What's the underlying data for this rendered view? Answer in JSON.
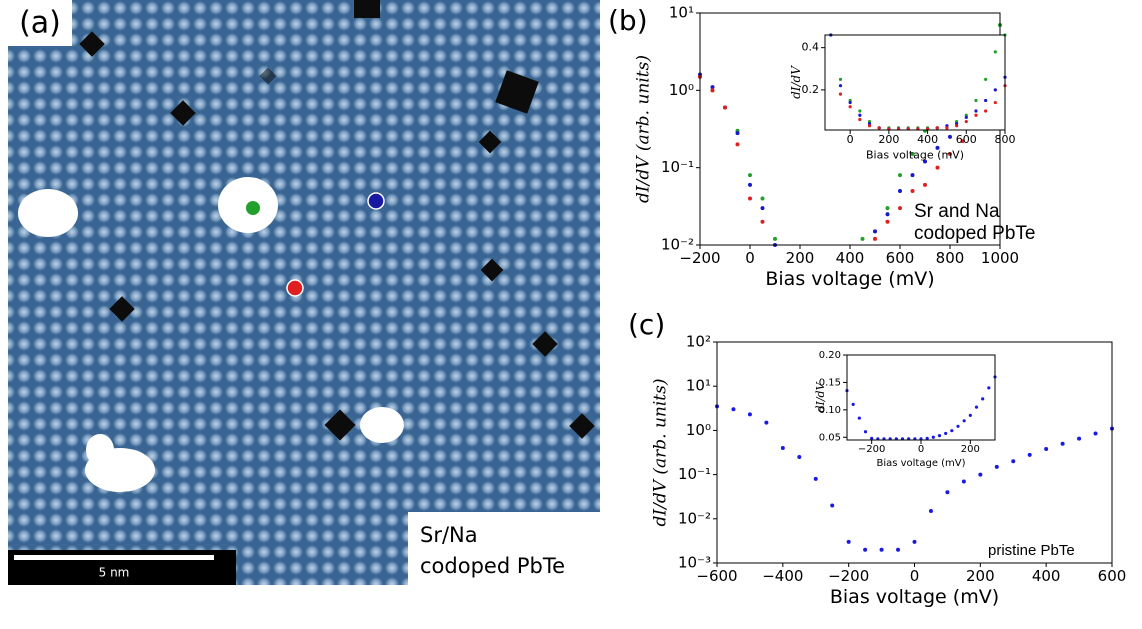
{
  "image_panel": {
    "label": "(a)",
    "scale_bar": "5 nm",
    "caption": [
      "Sr/Na",
      "codoped PbTe"
    ]
  },
  "chart_data": [
    {
      "type": "scatter",
      "panel_label": "(b)",
      "xlabel": "Bias voltage (mV)",
      "ylabel": "dI/dV (arb. units)",
      "annotation": [
        "Sr and Na",
        "codoped PbTe"
      ],
      "log_y": true,
      "xlim": [
        -200,
        1000
      ],
      "ylim": [
        0.01,
        10
      ],
      "xticks": [
        {
          "value": -200,
          "label": "−200"
        },
        0,
        200,
        400,
        600,
        800,
        1000
      ],
      "yticks": [
        {
          "value": 0.01,
          "label": "10⁻²"
        },
        {
          "value": 0.1,
          "label": "10⁻¹"
        },
        {
          "value": 1,
          "label": "10⁰"
        },
        {
          "value": 10,
          "label": "10¹"
        }
      ],
      "x": [
        -200,
        -150,
        -100,
        -50,
        0,
        50,
        100,
        150,
        200,
        250,
        300,
        350,
        400,
        450,
        500,
        550,
        600,
        650,
        700,
        750,
        800,
        850,
        900,
        950,
        1000
      ],
      "series": [
        {
          "color": "#22a02a",
          "values": [
            1.5,
            1.0,
            0.6,
            0.3,
            0.08,
            0.04,
            0.012,
            null,
            null,
            null,
            null,
            null,
            null,
            0.012,
            0.015,
            0.03,
            0.08,
            0.15,
            0.3,
            0.6,
            1.0,
            1.6,
            2.5,
            4,
            7
          ]
        },
        {
          "color": "#1818d0",
          "values": [
            1.6,
            1.1,
            0.6,
            0.28,
            0.06,
            0.03,
            0.01,
            null,
            null,
            null,
            null,
            null,
            null,
            null,
            0.015,
            0.025,
            0.05,
            0.08,
            0.12,
            0.18,
            0.25,
            0.4,
            0.6,
            1.0,
            1.6
          ]
        },
        {
          "color": "#e02020",
          "values": [
            1.5,
            1.0,
            0.6,
            0.2,
            0.04,
            0.02,
            null,
            null,
            null,
            null,
            null,
            null,
            null,
            null,
            0.012,
            0.02,
            0.03,
            0.05,
            0.06,
            0.1,
            0.15,
            0.22,
            0.4,
            0.8,
            1.3
          ]
        }
      ]
    },
    {
      "type": "scatter",
      "xlabel": "Bias voltage (mV)",
      "ylabel": "dI/dV",
      "log_y": false,
      "xlim": [
        -130,
        800
      ],
      "ylim": [
        0.01,
        0.46
      ],
      "xticks": [
        0,
        200,
        400,
        600,
        800
      ],
      "yticks": [
        0.2,
        0.4
      ],
      "x": [
        -100,
        -50,
        0,
        50,
        100,
        150,
        200,
        250,
        300,
        350,
        400,
        450,
        500,
        550,
        600,
        650,
        700,
        750,
        800
      ],
      "series": [
        {
          "color": "#22a02a",
          "values": [
            0.46,
            0.25,
            0.15,
            0.1,
            0.05,
            0.02,
            0.02,
            0.02,
            0.02,
            0.02,
            0.02,
            0.02,
            0.02,
            0.05,
            0.08,
            0.15,
            0.25,
            0.38,
            0.46
          ]
        },
        {
          "color": "#1818d0",
          "values": [
            0.46,
            0.22,
            0.14,
            0.08,
            0.04,
            0.02,
            0.015,
            0.015,
            0.015,
            0.015,
            0.015,
            0.02,
            0.03,
            0.04,
            0.07,
            0.1,
            0.15,
            0.2,
            0.26
          ]
        },
        {
          "color": "#e02020",
          "values": [
            null,
            0.18,
            0.12,
            0.06,
            0.03,
            0.02,
            0.015,
            0.015,
            0.015,
            0.015,
            0.015,
            0.02,
            0.02,
            0.03,
            0.05,
            0.08,
            0.1,
            0.14,
            0.22
          ]
        }
      ]
    },
    {
      "type": "scatter",
      "panel_label": "(c)",
      "xlabel": "Bias voltage (mV)",
      "ylabel": "dI/dV (arb. units)",
      "annotation": [
        "pristine PbTe"
      ],
      "log_y": true,
      "xlim": [
        -600,
        600
      ],
      "ylim": [
        0.001,
        100
      ],
      "xticks": [
        {
          "value": -600,
          "label": "−600"
        },
        {
          "value": -400,
          "label": "−400"
        },
        {
          "value": -200,
          "label": "−200"
        },
        0,
        200,
        400,
        600
      ],
      "yticks": [
        {
          "value": 0.001,
          "label": "10⁻³"
        },
        {
          "value": 0.01,
          "label": "10⁻²"
        },
        {
          "value": 0.1,
          "label": "10⁻¹"
        },
        {
          "value": 1,
          "label": "10⁰"
        },
        {
          "value": 10,
          "label": "10¹"
        },
        {
          "value": 100,
          "label": "10²"
        }
      ],
      "x": [
        -600,
        -550,
        -500,
        -450,
        -400,
        -350,
        -300,
        -250,
        -200,
        -150,
        -100,
        -50,
        0,
        50,
        100,
        150,
        200,
        250,
        300,
        350,
        400,
        450,
        500,
        550,
        600
      ],
      "series": [
        {
          "color": "#1a1ae6",
          "values": [
            3.5,
            3,
            2.3,
            1.5,
            0.4,
            0.25,
            0.08,
            0.02,
            0.003,
            0.002,
            0.002,
            0.002,
            0.003,
            0.015,
            0.04,
            0.07,
            0.1,
            0.15,
            0.2,
            0.28,
            0.38,
            0.5,
            0.65,
            0.85,
            1.1
          ]
        }
      ]
    },
    {
      "type": "scatter",
      "xlabel": "Bias voltage (mV)",
      "ylabel": "dI/dV",
      "log_y": false,
      "xlim": [
        -300,
        300
      ],
      "ylim": [
        0.045,
        0.2
      ],
      "xticks": [
        {
          "value": -200,
          "label": "−200"
        },
        0,
        200
      ],
      "yticks": [
        0.05,
        {
          "value": 0.1,
          "label": "0.10"
        },
        0.15,
        {
          "value": 0.2,
          "label": "0.20"
        }
      ],
      "x": [
        -300,
        -275,
        -250,
        -225,
        -200,
        -175,
        -150,
        -125,
        -100,
        -75,
        -50,
        -25,
        0,
        25,
        50,
        75,
        100,
        125,
        150,
        175,
        200,
        225,
        250,
        275,
        300
      ],
      "series": [
        {
          "color": "#1a1ae6",
          "values": [
            0.135,
            0.11,
            0.085,
            0.06,
            0.048,
            0.047,
            0.047,
            0.047,
            0.047,
            0.047,
            0.047,
            0.047,
            0.047,
            0.048,
            0.05,
            0.053,
            0.057,
            0.062,
            0.07,
            0.08,
            0.09,
            0.105,
            0.12,
            0.14,
            0.16
          ]
        }
      ]
    }
  ]
}
